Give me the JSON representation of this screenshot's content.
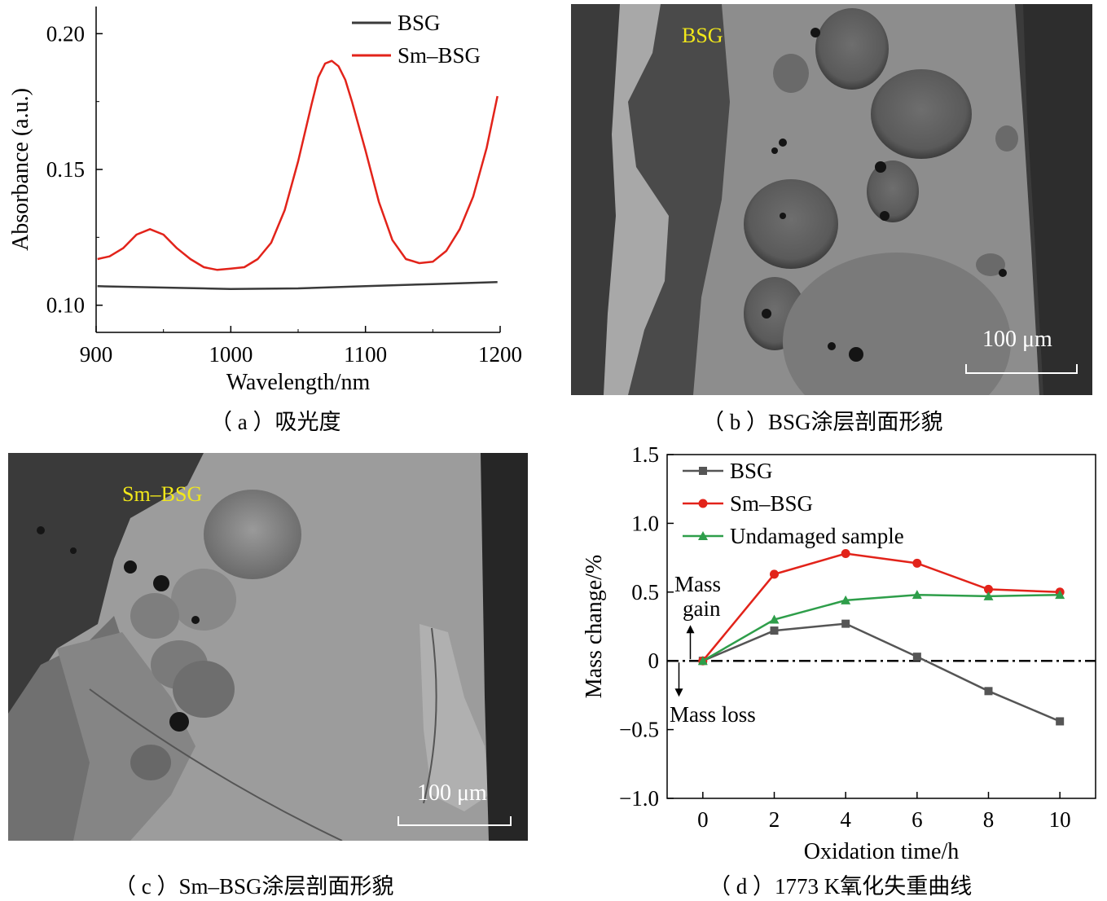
{
  "panels": {
    "a": {
      "caption": "（ a ）吸光度",
      "chart_data": {
        "type": "line",
        "xlabel": "Wavelength/nm",
        "ylabel": "Absorbance (a.u.)",
        "xlim": [
          900,
          1200
        ],
        "ylim": [
          0.09,
          0.21
        ],
        "xticks": [
          "900",
          "1000",
          "1100",
          "1200"
        ],
        "yticks": [
          "0.10",
          "0.15",
          "0.20"
        ],
        "legend_position": "top-right",
        "series": [
          {
            "name": "BSG",
            "color": "#3a3a3a",
            "x": [
              901,
              920,
              950,
              980,
              1000,
              1050,
              1100,
              1150,
              1198
            ],
            "y": [
              0.107,
              0.1068,
              0.1065,
              0.1062,
              0.106,
              0.1062,
              0.107,
              0.1078,
              0.1085
            ]
          },
          {
            "name": "Sm–BSG",
            "color": "#e2231a",
            "x": [
              901,
              910,
              920,
              930,
              940,
              950,
              960,
              970,
              980,
              990,
              1000,
              1010,
              1020,
              1030,
              1040,
              1050,
              1060,
              1065,
              1070,
              1075,
              1080,
              1085,
              1090,
              1100,
              1110,
              1120,
              1130,
              1140,
              1150,
              1160,
              1170,
              1180,
              1190,
              1198
            ],
            "y": [
              0.117,
              0.118,
              0.121,
              0.126,
              0.128,
              0.126,
              0.121,
              0.117,
              0.114,
              0.113,
              0.1135,
              0.114,
              0.117,
              0.123,
              0.135,
              0.153,
              0.174,
              0.184,
              0.189,
              0.19,
              0.188,
              0.183,
              0.175,
              0.157,
              0.138,
              0.124,
              0.117,
              0.1155,
              0.116,
              0.12,
              0.128,
              0.14,
              0.158,
              0.177
            ]
          }
        ]
      }
    },
    "b": {
      "caption": "（ b ）BSG涂层剖面形貌",
      "label": "BSG",
      "scale": "100 μm"
    },
    "c": {
      "caption": "（ c ）Sm–BSG涂层剖面形貌",
      "label": "Sm–BSG",
      "scale": "100 μm"
    },
    "d": {
      "caption": "（ d ）1773 K氧化失重曲线",
      "annotations": {
        "gain_1": "Mass",
        "gain_2": "gain",
        "loss": "Mass loss"
      },
      "chart_data": {
        "type": "line",
        "xlabel": "Oxidation time/h",
        "ylabel": "Mass change/%",
        "xlim": [
          -1,
          11
        ],
        "ylim": [
          -1.0,
          1.5
        ],
        "xticks": [
          "0",
          "2",
          "4",
          "6",
          "8",
          "10"
        ],
        "yticks": [
          "−1.0",
          "−0.5",
          "0",
          "0.5",
          "1.0",
          "1.5"
        ],
        "legend_position": "top-left",
        "reference_line": 0,
        "series": [
          {
            "name": "BSG",
            "color": "#555555",
            "marker": "square",
            "x": [
              0,
              2,
              4,
              6,
              8,
              10
            ],
            "y": [
              0,
              0.22,
              0.27,
              0.03,
              -0.22,
              -0.44
            ]
          },
          {
            "name": "Sm–BSG",
            "color": "#e2231a",
            "marker": "circle",
            "x": [
              0,
              2,
              4,
              6,
              8,
              10
            ],
            "y": [
              0,
              0.63,
              0.78,
              0.71,
              0.52,
              0.5
            ]
          },
          {
            "name": "Undamaged sample",
            "color": "#2e9e4a",
            "marker": "triangle",
            "x": [
              0,
              2,
              4,
              6,
              8,
              10
            ],
            "y": [
              0,
              0.3,
              0.44,
              0.48,
              0.47,
              0.48
            ]
          }
        ]
      }
    }
  }
}
